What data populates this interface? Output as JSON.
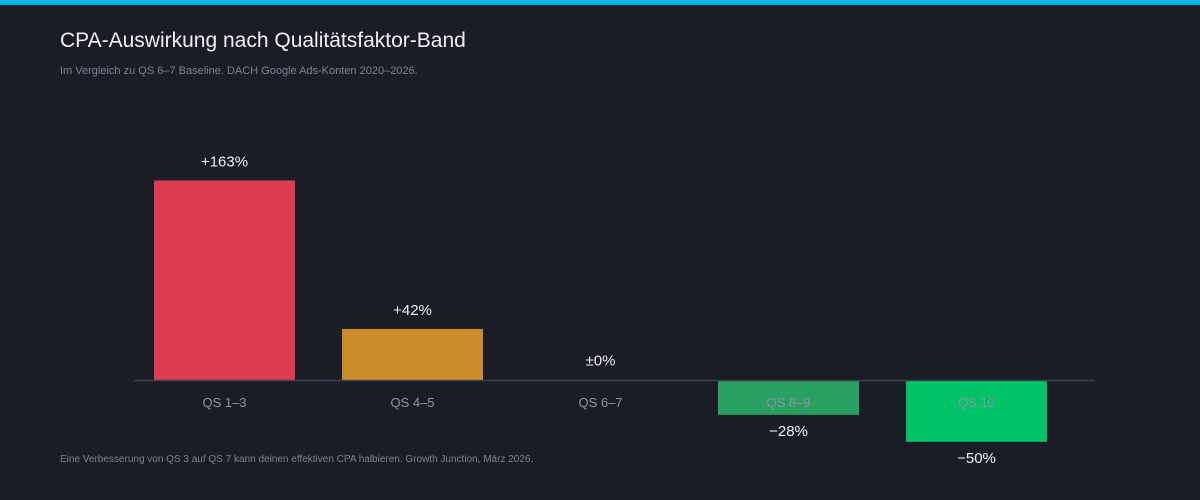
{
  "header": {
    "title": "CPA-Auswirkung nach Qualitätsfaktor-Band",
    "subtitle": "Im Vergleich zu QS 6–7 Baseline. DACH Google Ads-Konten 2020–2026."
  },
  "footer": {
    "note": "Eine Verbesserung von QS 3 auf QS 7 kann deinen effektiven CPA halbieren.  Growth Junction, März 2026."
  },
  "colors": {
    "accent_bar": "#00b4e6",
    "background": "#1b1d26"
  },
  "chart_data": {
    "type": "bar",
    "categories": [
      "QS 1–3",
      "QS 4–5",
      "QS 6–7",
      "QS 8–9",
      "QS 10"
    ],
    "values": [
      163,
      42,
      0,
      -28,
      -50
    ],
    "value_labels": [
      "+163%",
      "+42%",
      "±0%",
      "−28%",
      "−50%"
    ],
    "colors": [
      "#dc3d52",
      "#cb8d2c",
      "#8e93a6",
      "#29a062",
      "#00c266"
    ],
    "ylim": [
      -50,
      163
    ],
    "grid": false,
    "legend": "none"
  }
}
